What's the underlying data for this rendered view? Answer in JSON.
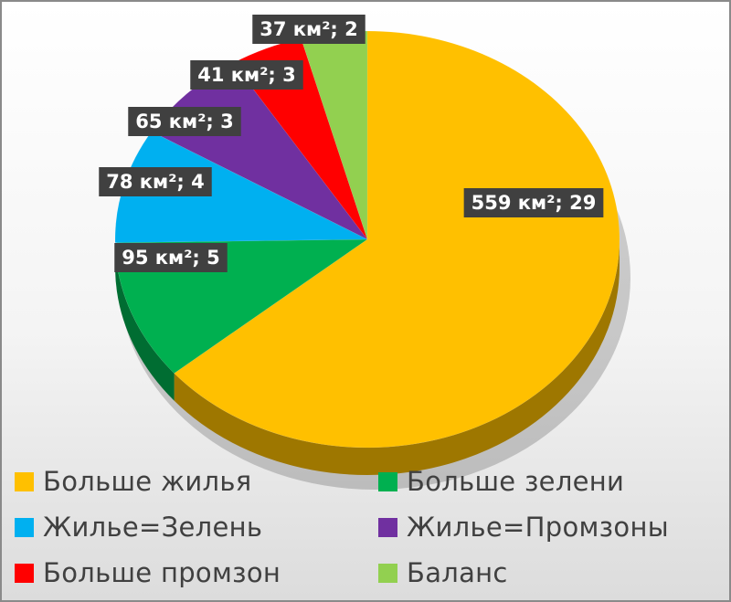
{
  "chart_data": {
    "type": "pie",
    "style": "3d",
    "slices": [
      {
        "name": "Больше жилья",
        "area_label": "559 км²; 29",
        "value": 559,
        "color": "#FFC000"
      },
      {
        "name": "Больше зелени",
        "area_label": "95 км²; 5",
        "value": 95,
        "color": "#00B050"
      },
      {
        "name": "Жилье=Зелень",
        "area_label": "78 км²; 4",
        "value": 78,
        "color": "#00B0F0"
      },
      {
        "name": "Жилье=Промзоны",
        "area_label": "65 км²; 3",
        "value": 65,
        "color": "#7030A0"
      },
      {
        "name": "Больше промзон",
        "area_label": "41 км²; 3",
        "value": 41,
        "color": "#FF0000"
      },
      {
        "name": "Баланс",
        "area_label": "37 км²; 2",
        "value": 37,
        "color": "#92D050"
      }
    ],
    "legend_position": "bottom",
    "legend": [
      "Больше жилья",
      "Больше зелени",
      "Жилье=Зелень",
      "Жилье=Промзоны",
      "Больше промзон",
      "Баланс"
    ]
  }
}
